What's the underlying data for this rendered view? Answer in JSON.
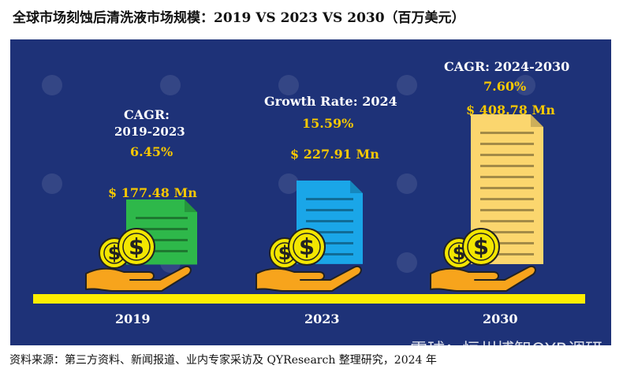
{
  "title": "全球市场刻蚀后清洗液市场规模：2019 VS 2023 VS 2030（百万美元）",
  "chart_data": {
    "type": "bar",
    "categories": [
      "2019",
      "2023",
      "2030"
    ],
    "values": [
      177.48,
      227.91,
      408.78
    ],
    "value_labels": [
      "$ 177.48 Mn",
      "$ 227.91 Mn",
      "$ 408.78 Mn"
    ],
    "unit": "百万美元",
    "annotations": {
      "cagr_2019_2023": {
        "line1": "CAGR:",
        "line2": "2019-2023",
        "value": "6.45%"
      },
      "growth_2024": {
        "label": "Growth Rate: 2024",
        "value": "15.59%"
      },
      "cagr_2024_2030": {
        "label": "CAGR: 2024-2030",
        "value": "7.60%"
      }
    }
  },
  "colors": {
    "panel": "#1e3278",
    "baseline": "#ffee00",
    "doc_2019": "#2eb84a",
    "doc_2023": "#1aa6e8",
    "doc_2030": "#fbd66e",
    "coin": "#f3e600",
    "hand": "#f7a41c"
  },
  "footer": "资料来源：第三方资料、新闻报道、业内专家采访及 QYResearch 整理研究，2024 年",
  "brand": "雪球：恒州博智QYR调研"
}
